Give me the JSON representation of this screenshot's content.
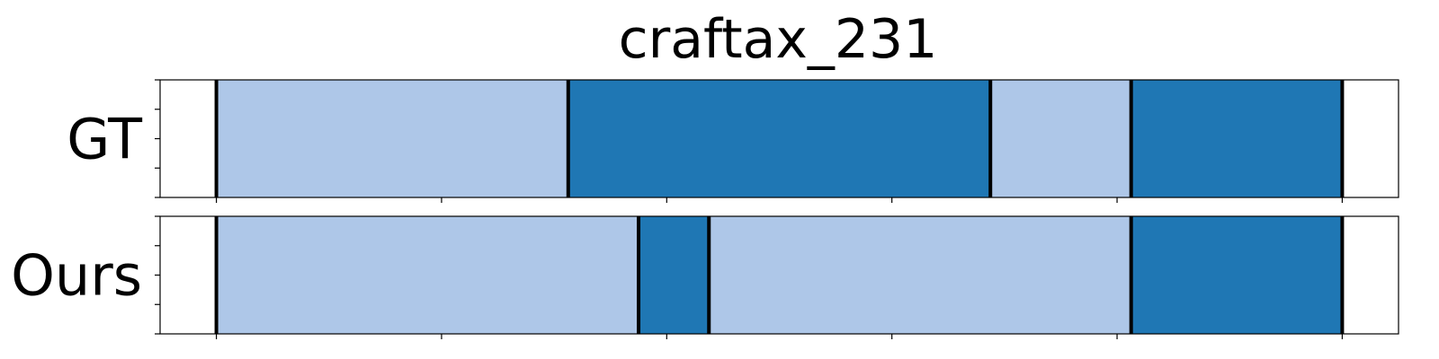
{
  "chart_data": {
    "type": "bar",
    "title": "craftax_231",
    "rows": [
      {
        "label": "GT",
        "boundaries": [
          0.5,
          6.75,
          14.25,
          16.75,
          20.5
        ],
        "segments": [
          {
            "start": 0.5,
            "end": 6.75,
            "color": "#aec7e8"
          },
          {
            "start": 6.75,
            "end": 14.25,
            "color": "#1f77b4"
          },
          {
            "start": 14.25,
            "end": 16.75,
            "color": "#aec7e8"
          },
          {
            "start": 16.75,
            "end": 20.5,
            "color": "#1f77b4"
          }
        ]
      },
      {
        "label": "Ours",
        "boundaries": [
          0.5,
          8.0,
          9.25,
          16.75,
          20.5
        ],
        "segments": [
          {
            "start": 0.5,
            "end": 8.0,
            "color": "#aec7e8"
          },
          {
            "start": 8.0,
            "end": 9.25,
            "color": "#1f77b4"
          },
          {
            "start": 9.25,
            "end": 16.75,
            "color": "#aec7e8"
          },
          {
            "start": 16.75,
            "end": 20.5,
            "color": "#1f77b4"
          }
        ]
      }
    ],
    "xlim": [
      -0.5,
      21.5
    ],
    "x_ticks": [
      0.5,
      4.5,
      8.5,
      12.5,
      16.5,
      20.5
    ],
    "colors": {
      "light": "#aec7e8",
      "dark": "#1f77b4",
      "boundary": "#000000"
    },
    "grid": false
  }
}
